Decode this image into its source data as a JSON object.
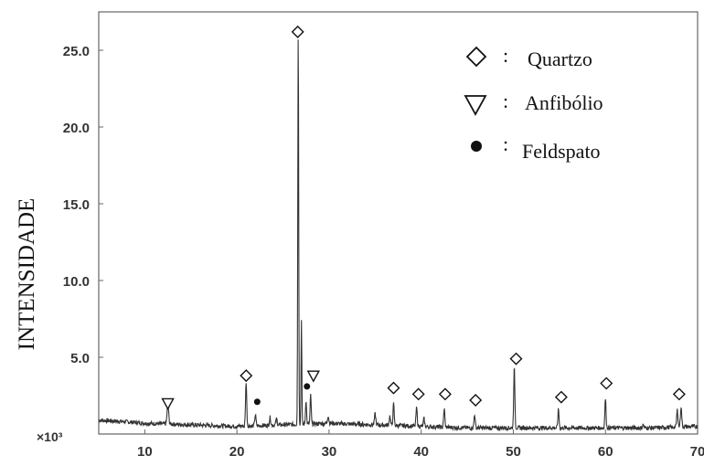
{
  "chart_data": {
    "type": "line",
    "title": "",
    "xlabel": "",
    "ylabel": "INTENSIDADE",
    "y_multiplier": "×10³",
    "xlim": [
      5,
      70
    ],
    "ylim": [
      0,
      26.5
    ],
    "x_ticks": [
      "10",
      "20",
      "30",
      "40",
      "50",
      "60",
      "70"
    ],
    "y_ticks": [
      "5.0",
      "10.0",
      "15.0",
      "20.0",
      "25.0"
    ],
    "grid": false,
    "legend_position": "top-right",
    "legend": [
      {
        "symbol": "diamond",
        "name": "Quartzo"
      },
      {
        "symbol": "triangle-down",
        "name": "Anfibólio"
      },
      {
        "symbol": "circle",
        "name": "Feldspato"
      }
    ],
    "legend_separator": ":",
    "baseline": [
      [
        5,
        0.9
      ],
      [
        8,
        0.8
      ],
      [
        10,
        0.7
      ],
      [
        15,
        0.6
      ],
      [
        20,
        0.5
      ],
      [
        25,
        0.6
      ],
      [
        30,
        0.7
      ],
      [
        35,
        0.6
      ],
      [
        40,
        0.5
      ],
      [
        45,
        0.4
      ],
      [
        50,
        0.4
      ],
      [
        55,
        0.4
      ],
      [
        60,
        0.4
      ],
      [
        65,
        0.4
      ],
      [
        70,
        0.5
      ]
    ],
    "peaks": [
      {
        "x": 12.5,
        "y": 1.3,
        "w": 0.12
      },
      {
        "x": 21.0,
        "y": 2.9,
        "w": 0.09
      },
      {
        "x": 22.0,
        "y": 0.7,
        "w": 0.1
      },
      {
        "x": 23.6,
        "y": 0.5,
        "w": 0.1
      },
      {
        "x": 24.3,
        "y": 0.4,
        "w": 0.1
      },
      {
        "x": 26.65,
        "y": 25.7,
        "w": 0.07
      },
      {
        "x": 27.0,
        "y": 6.9,
        "w": 0.06
      },
      {
        "x": 27.5,
        "y": 1.6,
        "w": 0.08
      },
      {
        "x": 28.0,
        "y": 1.9,
        "w": 0.08
      },
      {
        "x": 29.9,
        "y": 0.5,
        "w": 0.1
      },
      {
        "x": 35.0,
        "y": 0.7,
        "w": 0.1
      },
      {
        "x": 36.6,
        "y": 0.6,
        "w": 0.1
      },
      {
        "x": 37.0,
        "y": 1.4,
        "w": 0.09
      },
      {
        "x": 39.5,
        "y": 1.2,
        "w": 0.09
      },
      {
        "x": 40.3,
        "y": 0.5,
        "w": 0.09
      },
      {
        "x": 42.5,
        "y": 1.2,
        "w": 0.09
      },
      {
        "x": 45.8,
        "y": 0.9,
        "w": 0.09
      },
      {
        "x": 50.1,
        "y": 3.9,
        "w": 0.09
      },
      {
        "x": 54.9,
        "y": 1.2,
        "w": 0.09
      },
      {
        "x": 60.0,
        "y": 1.9,
        "w": 0.09
      },
      {
        "x": 64.1,
        "y": 0.2,
        "w": 0.1
      },
      {
        "x": 67.8,
        "y": 1.1,
        "w": 0.1
      },
      {
        "x": 68.2,
        "y": 1.3,
        "w": 0.1
      }
    ],
    "markers": [
      {
        "symbol": "triangle-down",
        "x": 12.5,
        "y": 2.0
      },
      {
        "symbol": "diamond",
        "x": 21.0,
        "y": 3.8
      },
      {
        "symbol": "circle",
        "x": 22.2,
        "y": 2.1
      },
      {
        "symbol": "diamond",
        "x": 26.6,
        "y": 26.2
      },
      {
        "symbol": "circle",
        "x": 27.6,
        "y": 3.1
      },
      {
        "symbol": "triangle-down",
        "x": 28.3,
        "y": 3.8
      },
      {
        "symbol": "diamond",
        "x": 37.0,
        "y": 3.0
      },
      {
        "symbol": "diamond",
        "x": 39.7,
        "y": 2.6
      },
      {
        "symbol": "diamond",
        "x": 42.6,
        "y": 2.6
      },
      {
        "symbol": "diamond",
        "x": 45.9,
        "y": 2.2
      },
      {
        "symbol": "diamond",
        "x": 50.3,
        "y": 4.9
      },
      {
        "symbol": "diamond",
        "x": 55.2,
        "y": 2.4
      },
      {
        "symbol": "diamond",
        "x": 60.1,
        "y": 3.3
      },
      {
        "symbol": "diamond",
        "x": 68.0,
        "y": 2.6
      }
    ]
  }
}
